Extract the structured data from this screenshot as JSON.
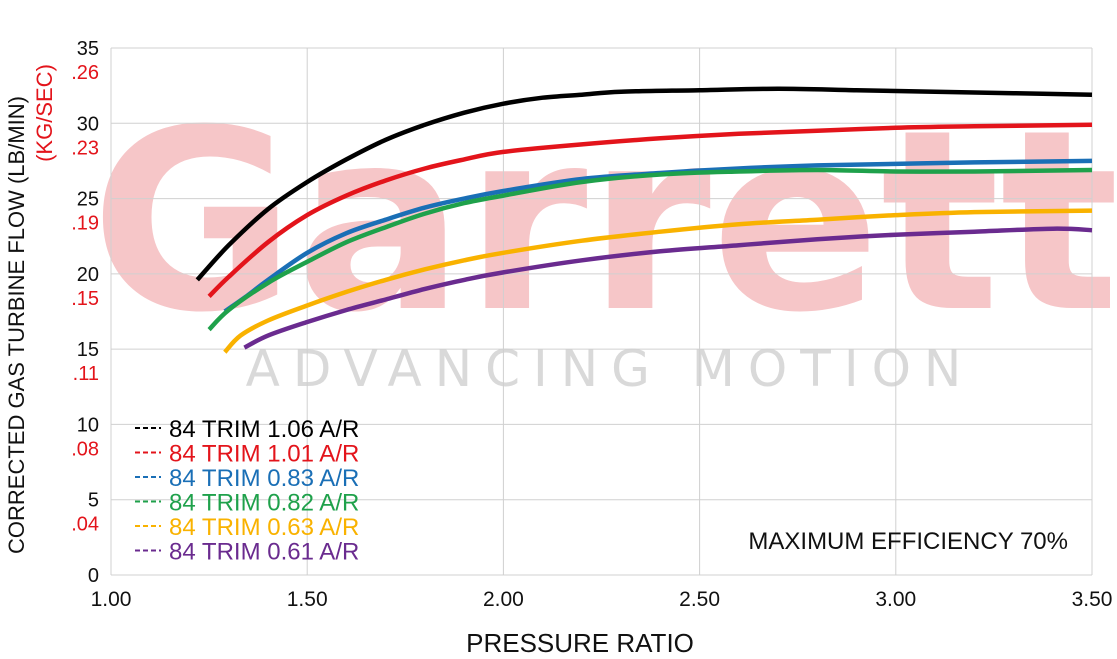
{
  "watermark": {
    "brand": "Garrett",
    "tagline": "ADVANCING MOTION"
  },
  "colors": {
    "grid": "#d0d0d0",
    "axis_text": "#111111",
    "secondary_axis": "#e3141b",
    "watermark_brand": "#f6c6c8",
    "watermark_tagline": "#d9d9d9"
  },
  "chart_data": {
    "type": "line",
    "title": "",
    "annotation": "MAXIMUM EFFICIENCY 70%",
    "xlabel": "PRESSURE RATIO",
    "ylabel": "CORRECTED GAS TURBINE FLOW (LB/MIN)",
    "ylabel_secondary": "(KG/SEC)",
    "xlim": [
      1.0,
      3.5
    ],
    "ylim": [
      0,
      35
    ],
    "x_ticks": [
      1.0,
      1.5,
      2.0,
      2.5,
      3.0,
      3.5
    ],
    "x_tick_labels": [
      "1.00",
      "1.50",
      "2.00",
      "2.50",
      "3.00",
      "3.50"
    ],
    "y_ticks": [
      0,
      5,
      10,
      15,
      20,
      25,
      30,
      35
    ],
    "y_tick_labels": [
      "0",
      "5",
      "10",
      "15",
      "20",
      "25",
      "30",
      "35"
    ],
    "y_secondary_tick_labels": [
      ".04",
      ".08",
      ".11",
      ".15",
      ".19",
      ".23",
      ".26"
    ],
    "grid": true,
    "legend_position": "bottom-left",
    "series": [
      {
        "name": "84 TRIM 1.06 A/R",
        "color": "#000000",
        "x": [
          1.22,
          1.3,
          1.4,
          1.5,
          1.6,
          1.7,
          1.8,
          1.9,
          2.0,
          2.1,
          2.2,
          2.3,
          2.5,
          2.7,
          2.9,
          3.1,
          3.3,
          3.5
        ],
        "y": [
          19.6,
          21.9,
          24.3,
          26.1,
          27.6,
          28.9,
          29.9,
          30.7,
          31.3,
          31.7,
          31.9,
          32.1,
          32.2,
          32.3,
          32.2,
          32.1,
          32.0,
          31.9
        ]
      },
      {
        "name": "84 TRIM 1.01 A/R",
        "color": "#e3141b",
        "x": [
          1.25,
          1.3,
          1.4,
          1.5,
          1.6,
          1.7,
          1.8,
          1.9,
          2.0,
          2.2,
          2.4,
          2.6,
          2.8,
          3.0,
          3.2,
          3.5
        ],
        "y": [
          18.5,
          19.8,
          22.1,
          23.9,
          25.2,
          26.2,
          27.0,
          27.6,
          28.1,
          28.6,
          29.0,
          29.3,
          29.5,
          29.7,
          29.8,
          29.9
        ]
      },
      {
        "name": "84 TRIM 0.83 A/R",
        "color": "#1a6fb6",
        "x": [
          1.29,
          1.35,
          1.4,
          1.5,
          1.6,
          1.7,
          1.8,
          1.9,
          2.0,
          2.2,
          2.4,
          2.6,
          2.8,
          3.0,
          3.2,
          3.5
        ],
        "y": [
          17.5,
          18.6,
          19.6,
          21.4,
          22.7,
          23.6,
          24.4,
          25.0,
          25.5,
          26.3,
          26.7,
          27.0,
          27.2,
          27.3,
          27.4,
          27.5
        ]
      },
      {
        "name": "84 TRIM 0.82 A/R",
        "color": "#1fa14b",
        "x": [
          1.25,
          1.3,
          1.4,
          1.5,
          1.6,
          1.7,
          1.8,
          1.9,
          2.0,
          2.2,
          2.4,
          2.6,
          2.8,
          3.0,
          3.2,
          3.5
        ],
        "y": [
          16.3,
          17.6,
          19.4,
          20.8,
          22.1,
          23.1,
          24.0,
          24.7,
          25.2,
          26.1,
          26.6,
          26.8,
          26.9,
          26.8,
          26.8,
          26.9
        ]
      },
      {
        "name": "84 TRIM 0.63 A/R",
        "color": "#f9b200",
        "x": [
          1.29,
          1.33,
          1.4,
          1.5,
          1.6,
          1.7,
          1.8,
          1.9,
          2.0,
          2.2,
          2.4,
          2.6,
          2.8,
          3.0,
          3.2,
          3.5
        ],
        "y": [
          14.8,
          15.9,
          16.9,
          17.9,
          18.8,
          19.6,
          20.3,
          20.9,
          21.4,
          22.2,
          22.8,
          23.3,
          23.6,
          23.9,
          24.1,
          24.2
        ]
      },
      {
        "name": "84 TRIM 0.61 A/R",
        "color": "#6a2b8f",
        "x": [
          1.34,
          1.4,
          1.5,
          1.6,
          1.7,
          1.8,
          1.9,
          2.0,
          2.2,
          2.4,
          2.6,
          2.8,
          3.0,
          3.2,
          3.4,
          3.5
        ],
        "y": [
          15.1,
          15.9,
          16.8,
          17.6,
          18.3,
          19.0,
          19.6,
          20.1,
          20.9,
          21.5,
          21.9,
          22.3,
          22.6,
          22.8,
          23.0,
          22.9
        ]
      }
    ]
  }
}
